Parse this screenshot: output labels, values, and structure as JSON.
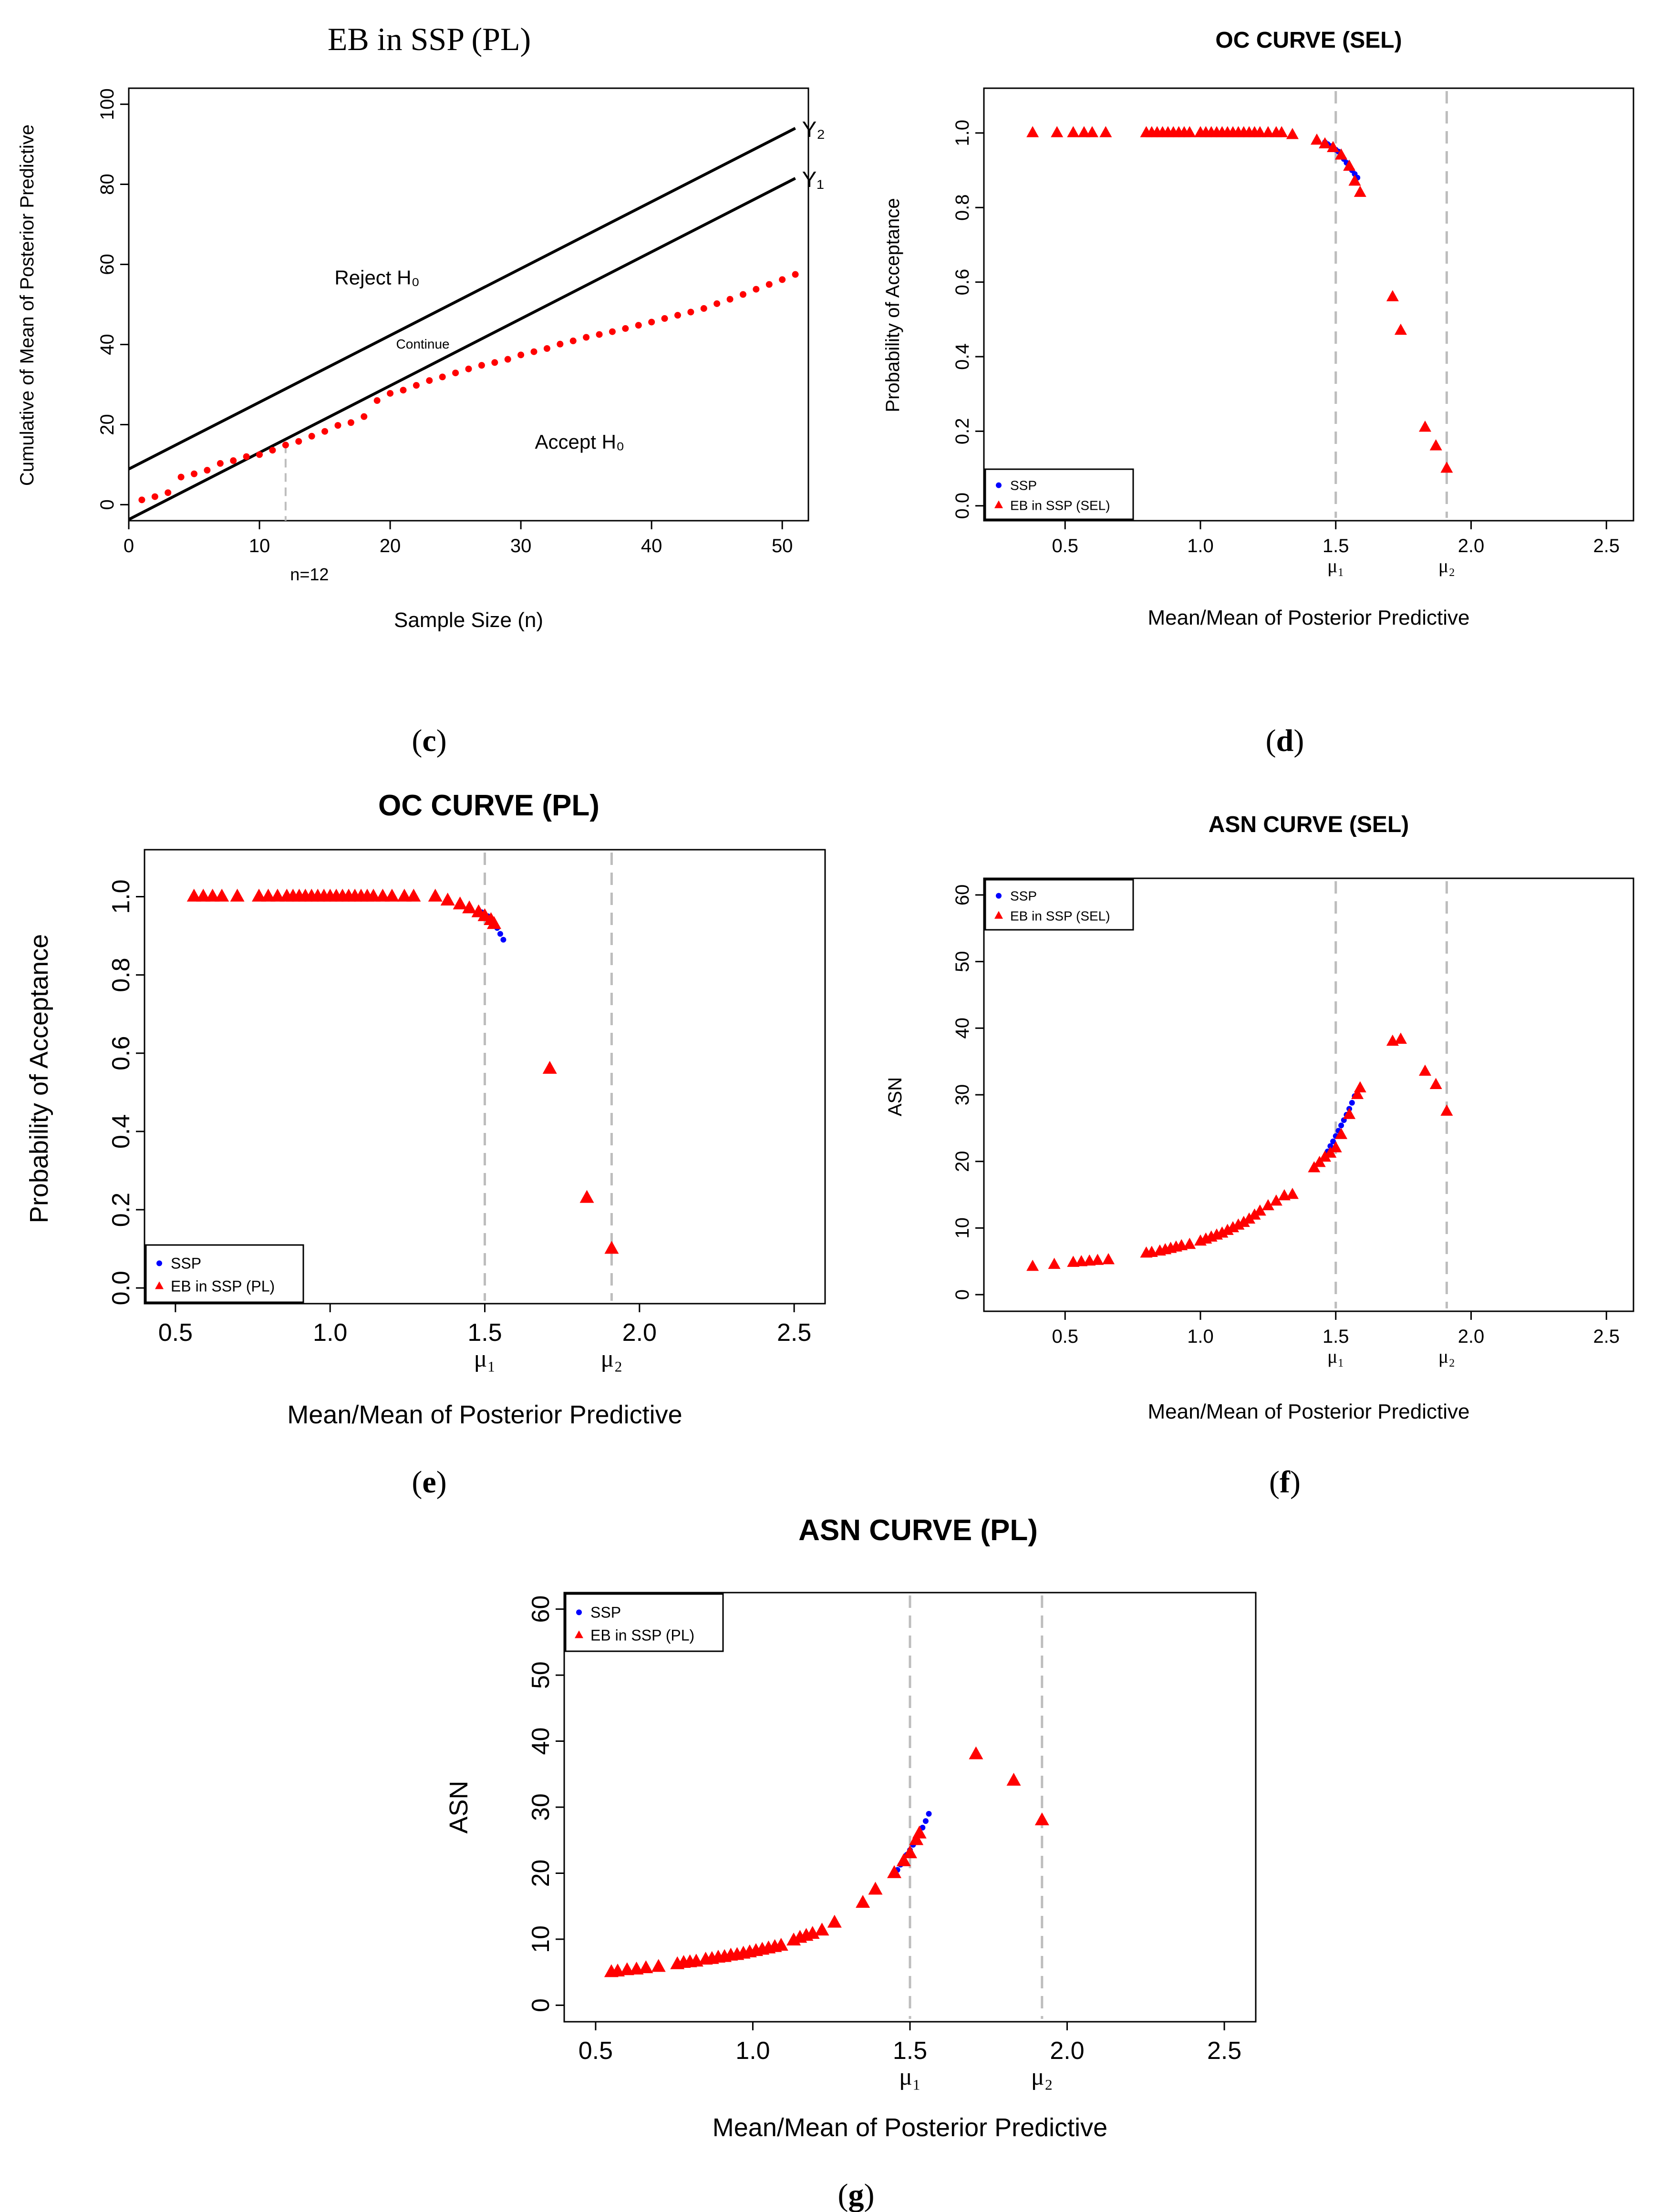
{
  "colors": {
    "ssp": "#0000ff",
    "eb": "#ff0000",
    "axis": "#000000",
    "guide": "#bdbdbd"
  },
  "chart_data": [
    {
      "id": "c",
      "caption": "c",
      "type": "scatter",
      "title": "EB in SSP (PL)",
      "xlabel": "Sample Size (n)",
      "ylabel": "Cumulative of Mean of Posterior Predictive",
      "xlim": [
        0,
        52
      ],
      "ylim": [
        -4,
        104
      ],
      "xticks": [
        "0",
        "10",
        "20",
        "30",
        "40",
        "50"
      ],
      "yticks": [
        "0",
        "20",
        "40",
        "60",
        "80",
        "100"
      ],
      "lines": [
        {
          "name": "Y₂",
          "x": [
            0,
            51
          ],
          "y": [
            8.9,
            94
          ]
        },
        {
          "name": "Y₁",
          "x": [
            0,
            51
          ],
          "y": [
            -3.7,
            81.5
          ]
        }
      ],
      "marker_x": {
        "x": 12,
        "label": "n=12"
      },
      "region_labels": {
        "reject": "Reject H₀",
        "continue": "Continue",
        "accept": "Accept H₀"
      },
      "series": [
        {
          "name": "cumulative",
          "x": [
            1,
            2,
            3,
            4,
            5,
            6,
            7,
            8,
            9,
            10,
            11,
            12,
            13,
            14,
            15,
            16,
            17,
            18,
            19,
            20,
            21,
            22,
            23,
            24,
            25,
            26,
            27,
            28,
            29,
            30,
            31,
            32,
            33,
            34,
            35,
            36,
            37,
            38,
            39,
            40,
            41,
            42,
            43,
            44,
            45,
            46,
            47,
            48,
            49,
            50,
            51
          ],
          "y": [
            1.2,
            2.0,
            3.0,
            6.9,
            7.7,
            8.6,
            10.3,
            11.0,
            12.0,
            12.5,
            13.6,
            14.9,
            15.8,
            17.1,
            18.3,
            19.8,
            20.5,
            22.0,
            26.0,
            27.8,
            28.6,
            29.8,
            31.0,
            31.9,
            32.9,
            33.9,
            34.8,
            35.5,
            36.3,
            37.4,
            38.2,
            39.0,
            40.1,
            40.9,
            41.8,
            42.5,
            43.2,
            44.0,
            44.8,
            45.6,
            46.5,
            47.3,
            48.1,
            49.0,
            50.2,
            51.3,
            52.5,
            53.8,
            55.0,
            56.2,
            57.5
          ]
        }
      ]
    },
    {
      "id": "d",
      "caption": "d",
      "type": "scatter",
      "title": "OC CURVE (SEL)",
      "xlabel": "Mean/Mean of Posterior Predictive",
      "ylabel": "Probability of Acceptance",
      "xlim": [
        0.2,
        2.6
      ],
      "ylim": [
        -0.04,
        1.12
      ],
      "xticks": [
        "0.5",
        "1.0",
        "1.5",
        "2.0",
        "2.5"
      ],
      "yticks": [
        "0.0",
        "0.2",
        "0.4",
        "0.6",
        "0.8",
        "1.0"
      ],
      "vlines": [
        {
          "x": 1.5,
          "label": "μ₁"
        },
        {
          "x": 1.91,
          "label": "μ₂"
        }
      ],
      "legend": {
        "position": "bottom-left",
        "entries": [
          "SSP",
          "EB in SSP (SEL)"
        ]
      },
      "series": [
        {
          "name": "SSP",
          "x": [
            1.46,
            1.47,
            1.48,
            1.49,
            1.5,
            1.51,
            1.52,
            1.53,
            1.54,
            1.55,
            1.56,
            1.57,
            1.58
          ],
          "y": [
            0.975,
            0.97,
            0.965,
            0.96,
            0.955,
            0.95,
            0.94,
            0.93,
            0.92,
            0.91,
            0.9,
            0.89,
            0.88
          ]
        },
        {
          "name": "EB in SSP (SEL)",
          "x": [
            0.38,
            0.47,
            0.53,
            0.57,
            0.6,
            0.65,
            0.8,
            0.82,
            0.84,
            0.86,
            0.88,
            0.9,
            0.92,
            0.94,
            0.96,
            1.0,
            1.02,
            1.04,
            1.06,
            1.08,
            1.1,
            1.12,
            1.14,
            1.16,
            1.18,
            1.2,
            1.22,
            1.25,
            1.28,
            1.3,
            1.34,
            1.43,
            1.46,
            1.49,
            1.52,
            1.55,
            1.57,
            1.59,
            1.71,
            1.74,
            1.83,
            1.87,
            1.91
          ],
          "y": [
            1.0,
            1.0,
            1.0,
            1.0,
            1.0,
            1.0,
            1.0,
            1.0,
            1.0,
            1.0,
            1.0,
            1.0,
            1.0,
            1.0,
            1.0,
            1.0,
            1.0,
            1.0,
            1.0,
            1.0,
            1.0,
            1.0,
            1.0,
            1.0,
            1.0,
            1.0,
            1.0,
            1.0,
            1.0,
            1.0,
            0.995,
            0.98,
            0.97,
            0.96,
            0.94,
            0.91,
            0.87,
            0.84,
            0.56,
            0.47,
            0.21,
            0.16,
            0.1
          ]
        }
      ]
    },
    {
      "id": "e",
      "caption": "e",
      "type": "scatter",
      "title": "OC CURVE (PL)",
      "xlabel": "Mean/Mean of Posterior Predictive",
      "ylabel": "Probability of Acceptance",
      "xlim": [
        0.4,
        2.6
      ],
      "ylim": [
        -0.04,
        1.12
      ],
      "xticks": [
        "0.5",
        "1.0",
        "1.5",
        "2.0",
        "2.5"
      ],
      "yticks": [
        "0.0",
        "0.2",
        "0.4",
        "0.6",
        "0.8",
        "1.0"
      ],
      "vlines": [
        {
          "x": 1.5,
          "label": "μ₁"
        },
        {
          "x": 1.91,
          "label": "μ₂"
        }
      ],
      "legend": {
        "position": "bottom-left",
        "entries": [
          "SSP",
          "EB in SSP (PL)"
        ]
      },
      "series": [
        {
          "name": "SSP",
          "x": [
            1.48,
            1.49,
            1.5,
            1.51,
            1.52,
            1.53,
            1.54,
            1.55,
            1.56
          ],
          "y": [
            0.965,
            0.96,
            0.955,
            0.95,
            0.94,
            0.93,
            0.92,
            0.905,
            0.89
          ]
        },
        {
          "name": "EB in SSP (PL)",
          "x": [
            0.56,
            0.59,
            0.62,
            0.65,
            0.7,
            0.77,
            0.8,
            0.83,
            0.86,
            0.88,
            0.9,
            0.92,
            0.94,
            0.96,
            0.98,
            1.0,
            1.02,
            1.04,
            1.06,
            1.08,
            1.1,
            1.12,
            1.14,
            1.17,
            1.2,
            1.24,
            1.27,
            1.34,
            1.38,
            1.42,
            1.45,
            1.48,
            1.5,
            1.52,
            1.53,
            1.71,
            1.83,
            1.91
          ],
          "y": [
            1.0,
            1.0,
            1.0,
            1.0,
            1.0,
            1.0,
            1.0,
            1.0,
            1.0,
            1.0,
            1.0,
            1.0,
            1.0,
            1.0,
            1.0,
            1.0,
            1.0,
            1.0,
            1.0,
            1.0,
            1.0,
            1.0,
            1.0,
            1.0,
            1.0,
            1.0,
            1.0,
            1.0,
            0.99,
            0.98,
            0.97,
            0.96,
            0.95,
            0.94,
            0.93,
            0.56,
            0.23,
            0.1
          ]
        }
      ]
    },
    {
      "id": "f",
      "caption": "f",
      "type": "scatter",
      "title": "ASN CURVE (SEL)",
      "xlabel": "Mean/Mean of Posterior Predictive",
      "ylabel": "ASN",
      "xlim": [
        0.2,
        2.6
      ],
      "ylim": [
        -2.5,
        62.5
      ],
      "xticks": [
        "0.5",
        "1.0",
        "1.5",
        "2.0",
        "2.5"
      ],
      "yticks": [
        "0",
        "10",
        "20",
        "30",
        "40",
        "50",
        "60"
      ],
      "vlines": [
        {
          "x": 1.5,
          "label": "μ₁"
        },
        {
          "x": 1.91,
          "label": "μ₂"
        }
      ],
      "legend": {
        "position": "top-left",
        "entries": [
          "SSP",
          "EB in SSP (SEL)"
        ]
      },
      "series": [
        {
          "name": "SSP",
          "x": [
            1.47,
            1.48,
            1.49,
            1.5,
            1.51,
            1.52,
            1.53,
            1.54,
            1.55,
            1.56,
            1.57
          ],
          "y": [
            21.5,
            22.3,
            23.0,
            23.8,
            24.6,
            25.4,
            26.2,
            27.0,
            27.9,
            28.8,
            29.8
          ]
        },
        {
          "name": "EB in SSP (SEL)",
          "x": [
            0.38,
            0.46,
            0.53,
            0.56,
            0.59,
            0.62,
            0.66,
            0.8,
            0.82,
            0.85,
            0.87,
            0.89,
            0.91,
            0.93,
            0.96,
            1.0,
            1.02,
            1.04,
            1.06,
            1.08,
            1.1,
            1.12,
            1.14,
            1.16,
            1.18,
            1.2,
            1.22,
            1.25,
            1.28,
            1.31,
            1.34,
            1.42,
            1.44,
            1.46,
            1.48,
            1.5,
            1.52,
            1.55,
            1.58,
            1.59,
            1.71,
            1.74,
            1.83,
            1.87,
            1.91
          ],
          "y": [
            4.2,
            4.5,
            4.8,
            4.9,
            5.0,
            5.1,
            5.2,
            6.2,
            6.3,
            6.5,
            6.7,
            6.9,
            7.1,
            7.3,
            7.5,
            8.0,
            8.3,
            8.6,
            8.9,
            9.2,
            9.6,
            10.0,
            10.4,
            10.8,
            11.3,
            11.9,
            12.5,
            13.3,
            14.0,
            14.8,
            15.0,
            19.0,
            19.8,
            20.6,
            21.2,
            22.0,
            24.0,
            27.0,
            30.0,
            31.0,
            38.0,
            38.3,
            33.5,
            31.5,
            27.5
          ]
        }
      ]
    },
    {
      "id": "g",
      "caption": "g",
      "type": "scatter",
      "title": "ASN CURVE (PL)",
      "xlabel": "Mean/Mean of Posterior Predictive",
      "ylabel": "ASN",
      "xlim": [
        0.4,
        2.6
      ],
      "ylim": [
        -2.5,
        62.5
      ],
      "xticks": [
        "0.5",
        "1.0",
        "1.5",
        "2.0",
        "2.5"
      ],
      "yticks": [
        "0",
        "10",
        "20",
        "30",
        "40",
        "50",
        "60"
      ],
      "vlines": [
        {
          "x": 1.5,
          "label": "μ₁"
        },
        {
          "x": 1.92,
          "label": "μ₂"
        }
      ],
      "legend": {
        "position": "top-left",
        "entries": [
          "SSP",
          "EB in SSP (PL)"
        ]
      },
      "series": [
        {
          "name": "SSP",
          "x": [
            1.46,
            1.47,
            1.48,
            1.49,
            1.5,
            1.51,
            1.52,
            1.53,
            1.54,
            1.55,
            1.56
          ],
          "y": [
            20.5,
            21.3,
            22.0,
            22.8,
            23.5,
            24.3,
            25.1,
            26.0,
            26.9,
            27.9,
            29.0
          ]
        },
        {
          "name": "EB in SSP (PL)",
          "x": [
            0.55,
            0.57,
            0.6,
            0.63,
            0.66,
            0.7,
            0.76,
            0.78,
            0.8,
            0.82,
            0.85,
            0.87,
            0.89,
            0.91,
            0.93,
            0.95,
            0.97,
            0.99,
            1.01,
            1.03,
            1.05,
            1.07,
            1.09,
            1.13,
            1.15,
            1.17,
            1.19,
            1.22,
            1.26,
            1.35,
            1.39,
            1.45,
            1.48,
            1.5,
            1.52,
            1.53,
            1.71,
            1.83,
            1.92
          ],
          "y": [
            5.0,
            5.1,
            5.3,
            5.4,
            5.6,
            5.8,
            6.2,
            6.4,
            6.5,
            6.6,
            6.9,
            7.0,
            7.2,
            7.3,
            7.5,
            7.6,
            7.8,
            8.0,
            8.2,
            8.4,
            8.6,
            8.8,
            9.0,
            9.8,
            10.2,
            10.5,
            10.8,
            11.3,
            12.5,
            15.5,
            17.5,
            20.0,
            21.8,
            23.0,
            25.0,
            26.0,
            38.0,
            34.0,
            28.0
          ]
        }
      ]
    }
  ]
}
